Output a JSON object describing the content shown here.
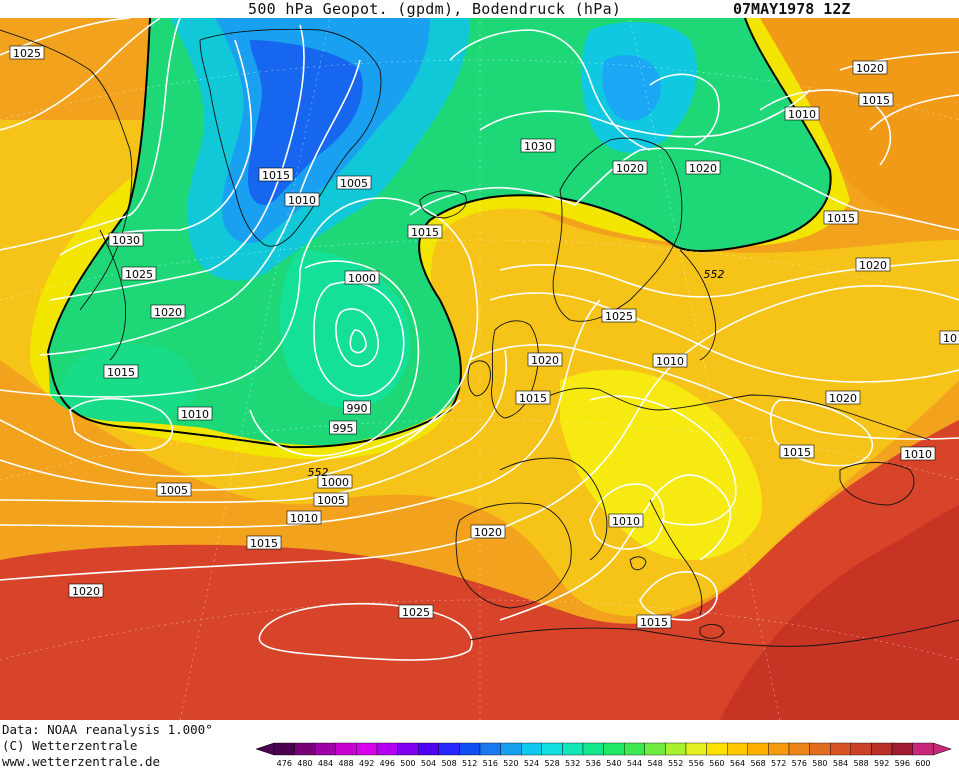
{
  "header": {
    "title": "500 hPa Geopot. (gpdm), Bodendruck (hPa)",
    "date": "07MAY1978 12Z"
  },
  "footer": {
    "source": "Data: NOAA reanalysis 1.000°",
    "copyright": "(C) Wetterzentrale",
    "website": "www.wetterzentrale.de"
  },
  "colors": {
    "c476": "#5a0060",
    "c552": "#f6f000",
    "c600": "#c8287a",
    "green": "#1fd86e",
    "blue": "#1a60e0",
    "orange": "#ea8a1a",
    "red": "#d24020"
  },
  "colorbar": {
    "ticks": [
      "476",
      "480",
      "484",
      "488",
      "492",
      "496",
      "500",
      "504",
      "508",
      "512",
      "516",
      "520",
      "524",
      "528",
      "532",
      "536",
      "540",
      "544",
      "548",
      "552",
      "556",
      "560",
      "564",
      "568",
      "572",
      "576",
      "580",
      "584",
      "588",
      "592",
      "596",
      "600"
    ],
    "colors": [
      "#4a0050",
      "#7a0078",
      "#a000a8",
      "#c800d0",
      "#d800e8",
      "#b400f0",
      "#8000f0",
      "#5000f0",
      "#2828ff",
      "#1050f0",
      "#1a78f0",
      "#18a0f0",
      "#10c8f0",
      "#10e0e0",
      "#10e8b8",
      "#14e88c",
      "#1ee864",
      "#3ee850",
      "#70ec40",
      "#a8f030",
      "#e6f020",
      "#ffe000",
      "#ffc800",
      "#ffb000",
      "#f89a10",
      "#ee8418",
      "#e26c20",
      "#d85424",
      "#cc4028",
      "#b83028",
      "#a01c30",
      "#c8287a"
    ]
  },
  "map_labels": {
    "isobars": [
      {
        "id": "p01",
        "text": "1025"
      },
      {
        "id": "p02",
        "text": "1015"
      },
      {
        "id": "p03",
        "text": "1010"
      },
      {
        "id": "p04",
        "text": "1005"
      },
      {
        "id": "p05",
        "text": "1030"
      },
      {
        "id": "p06",
        "text": "1025"
      },
      {
        "id": "p07",
        "text": "1020"
      },
      {
        "id": "p08",
        "text": "1015"
      },
      {
        "id": "p09",
        "text": "1010"
      },
      {
        "id": "p10",
        "text": "1000"
      },
      {
        "id": "p11",
        "text": "990"
      },
      {
        "id": "p12",
        "text": "995"
      },
      {
        "id": "p13",
        "text": "1000"
      },
      {
        "id": "p14",
        "text": "1005"
      },
      {
        "id": "p15",
        "text": "1010"
      },
      {
        "id": "p16",
        "text": "1015"
      },
      {
        "id": "p17",
        "text": "1005"
      },
      {
        "id": "p18",
        "text": "1020"
      },
      {
        "id": "p19",
        "text": "1025"
      },
      {
        "id": "p20",
        "text": "1020"
      },
      {
        "id": "p21",
        "text": "1015"
      },
      {
        "id": "p22",
        "text": "1030"
      },
      {
        "id": "p23",
        "text": "1020"
      },
      {
        "id": "p24",
        "text": "1020"
      },
      {
        "id": "p25",
        "text": "1025"
      },
      {
        "id": "p26",
        "text": "1020"
      },
      {
        "id": "p27",
        "text": "1010"
      },
      {
        "id": "p28",
        "text": "1015"
      },
      {
        "id": "p29",
        "text": "1010"
      },
      {
        "id": "p30",
        "text": "1015"
      },
      {
        "id": "p31",
        "text": "1020"
      },
      {
        "id": "p32",
        "text": "1015"
      },
      {
        "id": "p33",
        "text": "1010"
      },
      {
        "id": "p34",
        "text": "1020"
      },
      {
        "id": "p35",
        "text": "1015"
      },
      {
        "id": "p36",
        "text": "1020"
      },
      {
        "id": "p37",
        "text": "1015"
      },
      {
        "id": "p38",
        "text": "1010"
      },
      {
        "id": "p39",
        "text": "10"
      }
    ],
    "geopotential": [
      {
        "id": "g1",
        "text": "552"
      },
      {
        "id": "g2",
        "text": "552"
      }
    ]
  }
}
